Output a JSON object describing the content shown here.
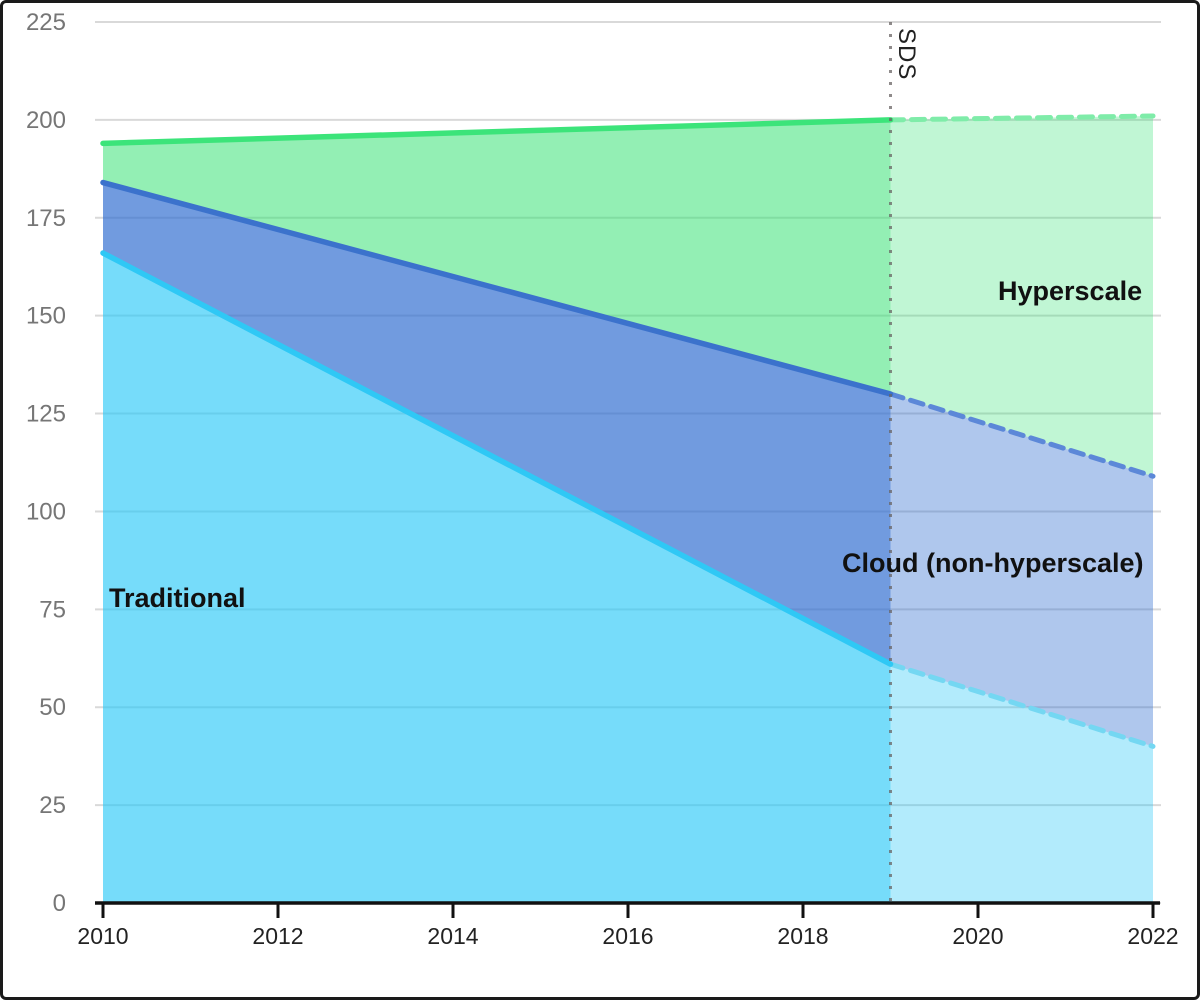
{
  "chart_data": {
    "type": "area",
    "title": "",
    "description": "Stacked area chart: storage capacity by segment. Solid areas 2010-2019 are historical; lighter dashed areas right of the dotted SDS divider (2019-2022) are forecast. 'top' values are the cumulative stacked boundary read from the y-axis.",
    "x_range": [
      2010,
      2022
    ],
    "x_ticks": [
      2010,
      2012,
      2014,
      2016,
      2018,
      2020,
      2022
    ],
    "y_range": [
      0,
      225
    ],
    "y_ticks": [
      0,
      25,
      50,
      75,
      100,
      125,
      150,
      175,
      200,
      225
    ],
    "grid": true,
    "legend": "none (areas labeled inline)",
    "forecast_divider": {
      "label": "SDS",
      "x": 2019,
      "line_style": "dotted",
      "color": "rgba(105,100,100,0.75)"
    },
    "series": [
      {
        "name": "Traditional",
        "slug": "traditional",
        "historical": {
          "x": [
            2010,
            2019
          ],
          "top": [
            166,
            61
          ]
        },
        "forecast": {
          "x": [
            2019,
            2022
          ],
          "top": [
            61,
            40
          ]
        },
        "colors": {
          "line": "#2fc8f5",
          "fill": "rgba(34,199,247,0.62)",
          "forecast_line": "#74d7f2",
          "forecast_fill": "rgba(34,199,247,0.35)"
        }
      },
      {
        "name": "Cloud (non-hyperscale)",
        "slug": "cloud",
        "historical": {
          "x": [
            2010,
            2019
          ],
          "top": [
            184,
            130
          ]
        },
        "forecast": {
          "x": [
            2019,
            2022
          ],
          "top": [
            130,
            109
          ]
        },
        "colors": {
          "line": "#3b72cc",
          "fill": "rgba(46,107,208,0.68)",
          "forecast_line": "#5c88d8",
          "forecast_fill": "rgba(46,107,208,0.38)"
        }
      },
      {
        "name": "Hyperscale",
        "slug": "hyperscale",
        "historical": {
          "x": [
            2010,
            2019
          ],
          "top": [
            194,
            200
          ]
        },
        "forecast": {
          "x": [
            2019,
            2022
          ],
          "top": [
            200,
            201
          ]
        },
        "colors": {
          "line": "#3ce47a",
          "fill": "rgba(47,224,112,0.52)",
          "forecast_line": "#7feca9",
          "forecast_fill": "rgba(47,224,112,0.30)"
        }
      }
    ],
    "axis_colors": {
      "grid": "#d9d9d9",
      "axis": "#111111",
      "x_tick_label": "#222222",
      "y_tick_label": "#767676"
    }
  }
}
